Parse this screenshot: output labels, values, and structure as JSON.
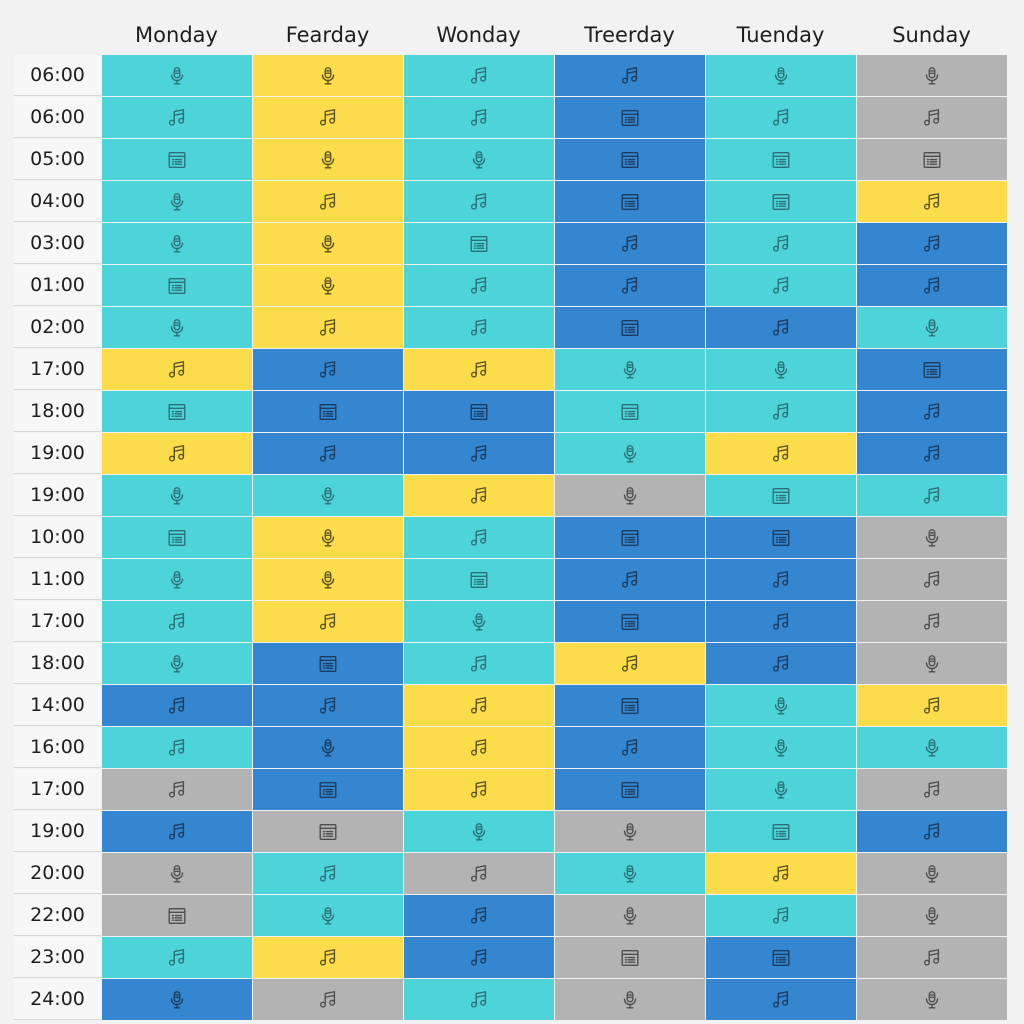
{
  "days": [
    "Monday",
    "Fearday",
    "Wonday",
    "Treerday",
    "Tuenday",
    "Sunday"
  ],
  "colors": {
    "teal": "#4dd4d9",
    "yellow": "#fbdc4a",
    "blue": "#3386cf",
    "gray": "#b3b3b3"
  },
  "icon_types": {
    "M": "microphone-icon",
    "N": "music-note-icon",
    "D": "document-icon"
  },
  "rows": [
    {
      "time": "06:00",
      "cells": [
        [
          "teal",
          "M"
        ],
        [
          "yellow",
          "M"
        ],
        [
          "teal",
          "N"
        ],
        [
          "blue",
          "N"
        ],
        [
          "teal",
          "M"
        ],
        [
          "gray",
          "M"
        ]
      ]
    },
    {
      "time": "06:00",
      "cells": [
        [
          "teal",
          "N"
        ],
        [
          "yellow",
          "N"
        ],
        [
          "teal",
          "N"
        ],
        [
          "blue",
          "D"
        ],
        [
          "teal",
          "N"
        ],
        [
          "gray",
          "N"
        ]
      ]
    },
    {
      "time": "05:00",
      "cells": [
        [
          "teal",
          "D"
        ],
        [
          "yellow",
          "M"
        ],
        [
          "teal",
          "M"
        ],
        [
          "blue",
          "D"
        ],
        [
          "teal",
          "D"
        ],
        [
          "gray",
          "D"
        ]
      ]
    },
    {
      "time": "04:00",
      "cells": [
        [
          "teal",
          "M"
        ],
        [
          "yellow",
          "N"
        ],
        [
          "teal",
          "N"
        ],
        [
          "blue",
          "D"
        ],
        [
          "teal",
          "D"
        ],
        [
          "yellow",
          "N"
        ]
      ]
    },
    {
      "time": "03:00",
      "cells": [
        [
          "teal",
          "M"
        ],
        [
          "yellow",
          "M"
        ],
        [
          "teal",
          "D"
        ],
        [
          "blue",
          "N"
        ],
        [
          "teal",
          "N"
        ],
        [
          "blue",
          "N"
        ]
      ]
    },
    {
      "time": "01:00",
      "cells": [
        [
          "teal",
          "D"
        ],
        [
          "yellow",
          "M"
        ],
        [
          "teal",
          "N"
        ],
        [
          "blue",
          "N"
        ],
        [
          "teal",
          "N"
        ],
        [
          "blue",
          "N"
        ]
      ]
    },
    {
      "time": "02:00",
      "cells": [
        [
          "teal",
          "M"
        ],
        [
          "yellow",
          "N"
        ],
        [
          "teal",
          "N"
        ],
        [
          "blue",
          "D"
        ],
        [
          "blue",
          "N"
        ],
        [
          "teal",
          "M"
        ]
      ]
    },
    {
      "time": "17:00",
      "cells": [
        [
          "yellow",
          "N"
        ],
        [
          "blue",
          "N"
        ],
        [
          "yellow",
          "N"
        ],
        [
          "teal",
          "M"
        ],
        [
          "teal",
          "M"
        ],
        [
          "blue",
          "D"
        ]
      ]
    },
    {
      "time": "18:00",
      "cells": [
        [
          "teal",
          "D"
        ],
        [
          "blue",
          "D"
        ],
        [
          "blue",
          "D"
        ],
        [
          "teal",
          "D"
        ],
        [
          "teal",
          "N"
        ],
        [
          "blue",
          "N"
        ]
      ]
    },
    {
      "time": "19:00",
      "cells": [
        [
          "yellow",
          "N"
        ],
        [
          "blue",
          "N"
        ],
        [
          "blue",
          "N"
        ],
        [
          "teal",
          "M"
        ],
        [
          "yellow",
          "N"
        ],
        [
          "blue",
          "N"
        ]
      ]
    },
    {
      "time": "19:00",
      "cells": [
        [
          "teal",
          "M"
        ],
        [
          "teal",
          "M"
        ],
        [
          "yellow",
          "N"
        ],
        [
          "gray",
          "M"
        ],
        [
          "teal",
          "D"
        ],
        [
          "teal",
          "N"
        ]
      ]
    },
    {
      "time": "10:00",
      "cells": [
        [
          "teal",
          "D"
        ],
        [
          "yellow",
          "M"
        ],
        [
          "teal",
          "N"
        ],
        [
          "blue",
          "D"
        ],
        [
          "blue",
          "D"
        ],
        [
          "gray",
          "M"
        ]
      ]
    },
    {
      "time": "11:00",
      "cells": [
        [
          "teal",
          "M"
        ],
        [
          "yellow",
          "M"
        ],
        [
          "teal",
          "D"
        ],
        [
          "blue",
          "N"
        ],
        [
          "blue",
          "N"
        ],
        [
          "gray",
          "N"
        ]
      ]
    },
    {
      "time": "17:00",
      "cells": [
        [
          "teal",
          "N"
        ],
        [
          "yellow",
          "N"
        ],
        [
          "teal",
          "M"
        ],
        [
          "blue",
          "D"
        ],
        [
          "blue",
          "N"
        ],
        [
          "gray",
          "N"
        ]
      ]
    },
    {
      "time": "18:00",
      "cells": [
        [
          "teal",
          "M"
        ],
        [
          "blue",
          "D"
        ],
        [
          "teal",
          "N"
        ],
        [
          "yellow",
          "N"
        ],
        [
          "blue",
          "N"
        ],
        [
          "gray",
          "M"
        ]
      ]
    },
    {
      "time": "14:00",
      "cells": [
        [
          "blue",
          "N"
        ],
        [
          "blue",
          "N"
        ],
        [
          "yellow",
          "N"
        ],
        [
          "blue",
          "D"
        ],
        [
          "teal",
          "M"
        ],
        [
          "yellow",
          "N"
        ]
      ]
    },
    {
      "time": "16:00",
      "cells": [
        [
          "teal",
          "N"
        ],
        [
          "blue",
          "M"
        ],
        [
          "yellow",
          "N"
        ],
        [
          "blue",
          "N"
        ],
        [
          "teal",
          "M"
        ],
        [
          "teal",
          "M"
        ]
      ]
    },
    {
      "time": "17:00",
      "cells": [
        [
          "gray",
          "N"
        ],
        [
          "blue",
          "D"
        ],
        [
          "yellow",
          "N"
        ],
        [
          "blue",
          "D"
        ],
        [
          "teal",
          "M"
        ],
        [
          "gray",
          "N"
        ]
      ]
    },
    {
      "time": "19:00",
      "cells": [
        [
          "blue",
          "N"
        ],
        [
          "gray",
          "D"
        ],
        [
          "teal",
          "M"
        ],
        [
          "gray",
          "M"
        ],
        [
          "teal",
          "D"
        ],
        [
          "blue",
          "N"
        ]
      ]
    },
    {
      "time": "20:00",
      "cells": [
        [
          "gray",
          "M"
        ],
        [
          "teal",
          "N"
        ],
        [
          "gray",
          "N"
        ],
        [
          "teal",
          "M"
        ],
        [
          "yellow",
          "N"
        ],
        [
          "gray",
          "M"
        ]
      ]
    },
    {
      "time": "22:00",
      "cells": [
        [
          "gray",
          "D"
        ],
        [
          "teal",
          "M"
        ],
        [
          "blue",
          "N"
        ],
        [
          "gray",
          "M"
        ],
        [
          "teal",
          "N"
        ],
        [
          "gray",
          "M"
        ]
      ]
    },
    {
      "time": "23:00",
      "cells": [
        [
          "teal",
          "N"
        ],
        [
          "yellow",
          "N"
        ],
        [
          "blue",
          "N"
        ],
        [
          "gray",
          "D"
        ],
        [
          "blue",
          "D"
        ],
        [
          "gray",
          "N"
        ]
      ]
    },
    {
      "time": "24:00",
      "cells": [
        [
          "blue",
          "M"
        ],
        [
          "gray",
          "N"
        ],
        [
          "teal",
          "N"
        ],
        [
          "gray",
          "M"
        ],
        [
          "blue",
          "N"
        ],
        [
          "gray",
          "M"
        ]
      ]
    }
  ]
}
